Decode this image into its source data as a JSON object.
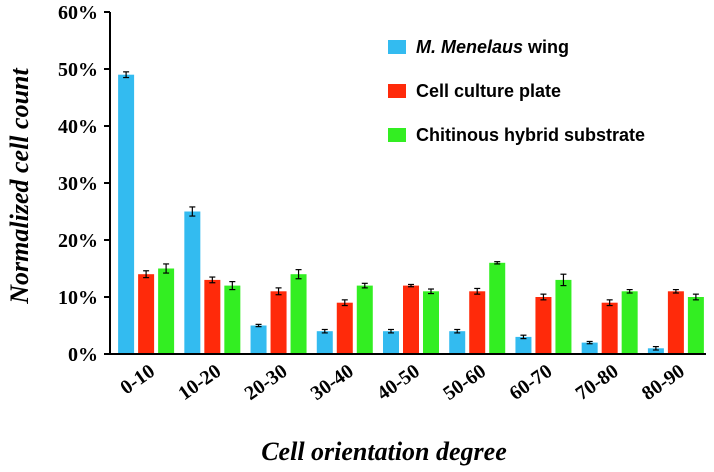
{
  "chart_data": {
    "type": "bar",
    "title": "",
    "xlabel": "Cell orientation degree",
    "ylabel": "Normalized cell count",
    "categories": [
      "0-10",
      "10-20",
      "20-30",
      "30-40",
      "40-50",
      "50-60",
      "60-70",
      "70-80",
      "80-90"
    ],
    "ylim": [
      0,
      60
    ],
    "yticks": [
      0,
      10,
      20,
      30,
      40,
      50,
      60
    ],
    "ytick_labels": [
      "0%",
      "10%",
      "20%",
      "30%",
      "40%",
      "50%",
      "60%"
    ],
    "legend_position": "top-right",
    "series": [
      {
        "name": "M. Menelaus wing",
        "legend_italic": "M. Menelaus",
        "legend_rest": " wing",
        "color": "#33bbf0",
        "values": [
          49,
          25,
          5,
          4,
          4,
          4,
          3,
          2,
          1
        ],
        "errors": [
          0.5,
          0.8,
          0.2,
          0.3,
          0.3,
          0.3,
          0.3,
          0.2,
          0.3
        ]
      },
      {
        "name": "Cell culture plate",
        "legend_italic": "",
        "legend_rest": "Cell culture plate",
        "color": "#ff2a0a",
        "values": [
          14,
          13,
          11,
          9,
          12,
          11,
          10,
          9,
          11
        ],
        "errors": [
          0.6,
          0.5,
          0.6,
          0.5,
          0.2,
          0.5,
          0.5,
          0.5,
          0.3
        ]
      },
      {
        "name": "Chitinous hybrid substrate",
        "legend_italic": "",
        "legend_rest": "Chitinous hybrid substrate",
        "color": "#33ee22",
        "values": [
          15,
          12,
          14,
          12,
          11,
          16,
          13,
          11,
          10
        ],
        "errors": [
          0.8,
          0.7,
          0.8,
          0.4,
          0.4,
          0.2,
          1.0,
          0.3,
          0.5
        ]
      }
    ]
  }
}
